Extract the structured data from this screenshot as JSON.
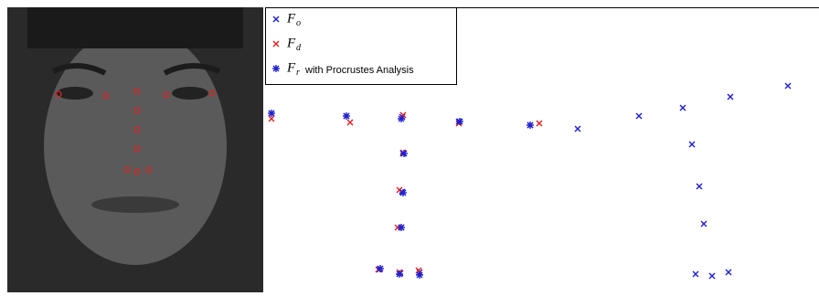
{
  "chart_data": {
    "type": "scatter",
    "series": [
      {
        "name": "F",
        "subscript": "o",
        "marker": "x",
        "color": "#2020d0",
        "x": [
          297,
          379,
          440,
          502,
          580,
          632,
          699,
          747,
          799,
          862,
          441,
          440,
          439,
          757,
          765,
          770,
          415,
          438,
          459,
          761,
          779,
          797
        ],
        "y": [
          124,
          127,
          128,
          133,
          137,
          141,
          127,
          118,
          106,
          94,
          168,
          210,
          249,
          158,
          204,
          245,
          295,
          299,
          298,
          300,
          302,
          298
        ]
      },
      {
        "name": "F",
        "subscript": "d",
        "marker": "x",
        "color": "#e02020",
        "x": [
          297,
          383,
          441,
          502,
          590,
          441,
          437,
          435,
          414,
          437,
          458
        ],
        "y": [
          130,
          134,
          126,
          135,
          135,
          167,
          208,
          249,
          295,
          298,
          296
        ]
      },
      {
        "name": "F",
        "subscript": "r",
        "suffix": "with Procrustes Analysis",
        "marker": "star",
        "color": "#2020d0",
        "x": [
          297,
          379,
          439,
          503,
          580,
          442,
          441,
          439,
          416,
          437,
          459
        ],
        "y": [
          124,
          127,
          130,
          133,
          137,
          168,
          211,
          249,
          294,
          300,
          301
        ]
      }
    ]
  }
}
